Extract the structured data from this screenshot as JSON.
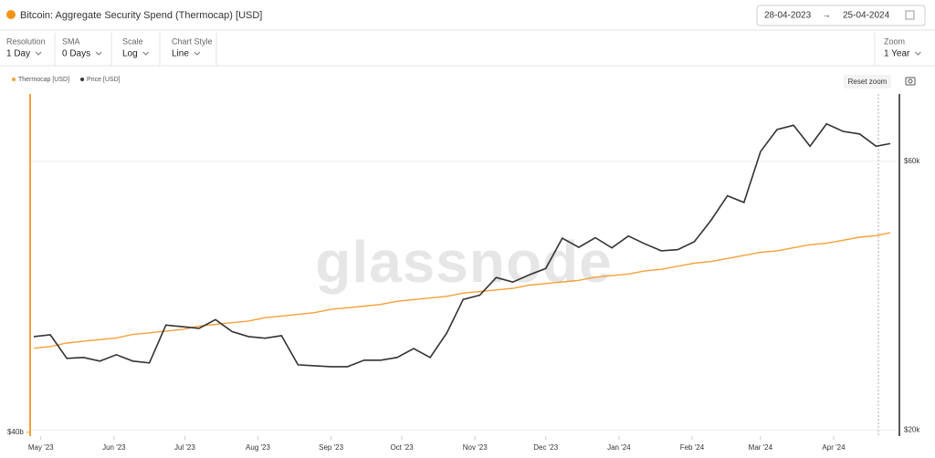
{
  "header": {
    "title": "Bitcoin: Aggregate Security Spend (Thermocap) [USD]",
    "date_from": "28-04-2023",
    "date_to": "25-04-2024"
  },
  "controls": [
    {
      "label": "Resolution",
      "value": "1 Day"
    },
    {
      "label": "SMA",
      "value": "0 Days"
    },
    {
      "label": "Scale",
      "value": "Log"
    },
    {
      "label": "Chart Style",
      "value": "Line"
    },
    {
      "label": "Zoom",
      "value": "1 Year"
    }
  ],
  "reset_zoom": "Reset zoom",
  "chart_data": {
    "type": "line",
    "watermark": "glassnode",
    "log_scale": true,
    "x": [
      "2023-04-28",
      "2023-05-05",
      "2023-05-12",
      "2023-05-19",
      "2023-05-26",
      "2023-06-02",
      "2023-06-09",
      "2023-06-16",
      "2023-06-23",
      "2023-06-30",
      "2023-07-07",
      "2023-07-14",
      "2023-07-21",
      "2023-07-28",
      "2023-08-04",
      "2023-08-11",
      "2023-08-18",
      "2023-08-25",
      "2023-09-01",
      "2023-09-08",
      "2023-09-15",
      "2023-09-22",
      "2023-09-29",
      "2023-10-06",
      "2023-10-13",
      "2023-10-20",
      "2023-10-27",
      "2023-11-03",
      "2023-11-10",
      "2023-11-17",
      "2023-11-24",
      "2023-12-01",
      "2023-12-08",
      "2023-12-15",
      "2023-12-22",
      "2023-12-29",
      "2024-01-05",
      "2024-01-12",
      "2024-01-19",
      "2024-01-26",
      "2024-02-02",
      "2024-02-09",
      "2024-02-16",
      "2024-02-23",
      "2024-03-01",
      "2024-03-08",
      "2024-03-15",
      "2024-03-22",
      "2024-03-29",
      "2024-04-05",
      "2024-04-12",
      "2024-04-19",
      "2024-04-25"
    ],
    "xlim": [
      "2023-04-28",
      "2024-04-25"
    ],
    "xticks": [
      {
        "value": "2023-05-01",
        "label": "May '23"
      },
      {
        "value": "2023-06-01",
        "label": "Jun '23"
      },
      {
        "value": "2023-07-01",
        "label": "Jul '23"
      },
      {
        "value": "2023-08-01",
        "label": "Aug '23"
      },
      {
        "value": "2023-09-01",
        "label": "Sep '23"
      },
      {
        "value": "2023-10-01",
        "label": "Oct '23"
      },
      {
        "value": "2023-11-01",
        "label": "Nov '23"
      },
      {
        "value": "2023-12-01",
        "label": "Dec '23"
      },
      {
        "value": "2024-01-01",
        "label": "Jan '24"
      },
      {
        "value": "2024-02-01",
        "label": "Feb '24"
      },
      {
        "value": "2024-03-01",
        "label": "Mar '24"
      },
      {
        "value": "2024-04-01",
        "label": "Apr '24"
      }
    ],
    "ylim": [
      39.8,
      62
    ],
    "yticks": [
      {
        "value": 40,
        "label": "$40b"
      }
    ],
    "y2lim": [
      19500,
      79000
    ],
    "y2ticks": [
      {
        "value": 20000,
        "label": "$20k"
      },
      {
        "value": 60000,
        "label": "$60k"
      }
    ],
    "series": [
      {
        "name": "Thermocap [USD]",
        "color": "#f5a03a",
        "axis": "y",
        "values": [
          44.6,
          44.7,
          44.9,
          45.0,
          45.1,
          45.2,
          45.4,
          45.5,
          45.6,
          45.7,
          45.9,
          46.0,
          46.1,
          46.2,
          46.4,
          46.5,
          46.6,
          46.7,
          46.9,
          47.0,
          47.1,
          47.2,
          47.4,
          47.5,
          47.6,
          47.7,
          47.9,
          48.0,
          48.1,
          48.2,
          48.4,
          48.5,
          48.6,
          48.7,
          48.9,
          49.0,
          49.1,
          49.3,
          49.4,
          49.6,
          49.8,
          49.9,
          50.1,
          50.3,
          50.5,
          50.6,
          50.8,
          51.0,
          51.1,
          51.3,
          51.5,
          51.6,
          51.8
        ]
      },
      {
        "name": "Price [USD]",
        "color": "#333333",
        "axis": "y2",
        "values": [
          29300,
          29500,
          26800,
          26900,
          26500,
          27200,
          26500,
          26300,
          30700,
          30500,
          30300,
          31400,
          29900,
          29300,
          29100,
          29400,
          26100,
          26000,
          25900,
          25900,
          26600,
          26600,
          26900,
          27900,
          26900,
          29700,
          34100,
          34700,
          37300,
          36600,
          37700,
          38700,
          43800,
          42200,
          43900,
          42100,
          44200,
          42800,
          41600,
          41800,
          43200,
          47100,
          52100,
          50700,
          62400,
          68300,
          69500,
          63800,
          69900,
          67800,
          67100,
          63800,
          64500
        ]
      }
    ]
  }
}
